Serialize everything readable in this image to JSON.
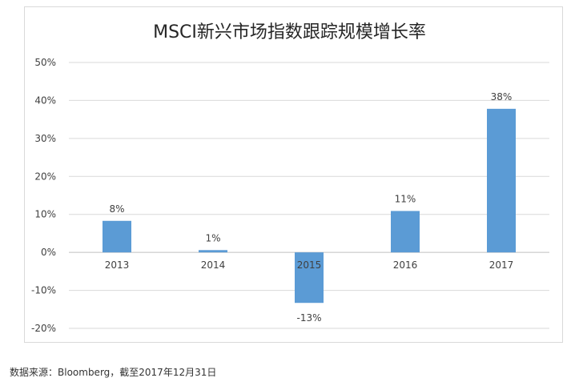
{
  "chart_data": {
    "type": "bar",
    "title": "MSCI新兴市场指数跟踪规模增长率",
    "categories": [
      "2013",
      "2014",
      "2015",
      "2016",
      "2017"
    ],
    "values": [
      8.3,
      0.6,
      -13.3,
      10.9,
      37.8
    ],
    "data_labels": [
      "8%",
      "1%",
      "-13%",
      "11%",
      "38%"
    ],
    "ylim": [
      -20,
      50
    ],
    "yticks": [
      50,
      40,
      30,
      20,
      10,
      0,
      -10,
      -20
    ],
    "ytick_labels": [
      "50%",
      "40%",
      "30%",
      "20%",
      "10%",
      "0%",
      "-10%",
      "-20%"
    ],
    "xlabel": "",
    "ylabel": "",
    "grid": true,
    "bar_color": "#5b9bd5"
  },
  "source": "数据来源：Bloomberg，截至2017年12月31日"
}
